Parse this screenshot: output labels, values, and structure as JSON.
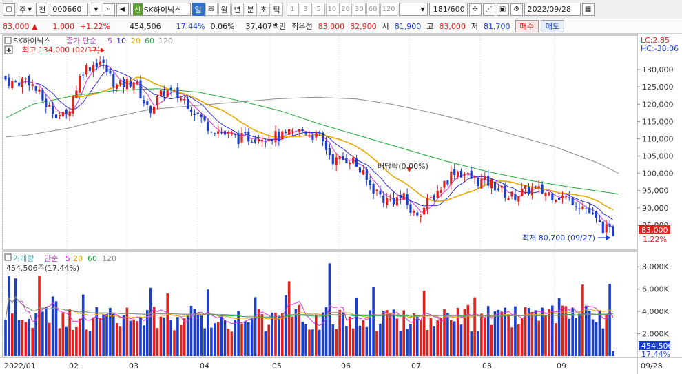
{
  "toolbar": {
    "type_label": "주",
    "market_label": "전",
    "code": "000660",
    "stock_badge": "신",
    "stock_name": "SK하이닉스",
    "periods": [
      {
        "label": "일",
        "active": true
      },
      {
        "label": "주",
        "active": false
      },
      {
        "label": "월",
        "active": false
      },
      {
        "label": "년",
        "active": false
      },
      {
        "label": "분",
        "active": false
      },
      {
        "label": "초",
        "active": false
      },
      {
        "label": "틱",
        "active": false
      }
    ],
    "minutes": [
      "1",
      "3",
      "5",
      "10",
      "20",
      "30",
      "60",
      "120"
    ],
    "count": "181",
    "count_total": "/600",
    "date": "2022/09/28"
  },
  "quote": {
    "price": "83,000",
    "change": "1,000",
    "change_pct": "+1.22%",
    "volume": "454,506",
    "volume_ratio": "17.44%",
    "turnover": "0.06%",
    "amount": "37,407백만",
    "best_ask_label": "최우선",
    "best_ask": "83,000",
    "best_bid": "82,900",
    "open_label": "시",
    "open": "81,900",
    "high_label": "고",
    "high": "83,000",
    "low_label": "저",
    "low": "81,700",
    "buy_label": "매수",
    "sell_label": "매도"
  },
  "chart": {
    "price_legend": {
      "name": "SK하이닉스",
      "series_label": "종가 단순",
      "mas": [
        "5",
        "10",
        "20",
        "60",
        "120"
      ]
    },
    "volume_legend": {
      "name": "거래량",
      "series_label": "단순",
      "mas": [
        "5",
        "20",
        "60",
        "120"
      ],
      "current": "454,506주(17.44%)"
    },
    "price_axis_labels": [
      "130,000",
      "125,000",
      "120,000",
      "115,000",
      "110,000",
      "105,000",
      "100,000",
      "95,000",
      "90,000",
      "85,000"
    ],
    "volume_axis_labels": [
      "8,000K",
      "6,000K",
      "4,000K",
      "2,000K"
    ],
    "lc_label": "LC:2.85",
    "hc_label": "HC:-38.06",
    "price_tag": "83,000",
    "price_tag_pct": "1.22%",
    "volume_tag": "454,506",
    "volume_tag_pct": "17.44%",
    "annotations": {
      "high": "최고 134,000 (02/17)",
      "low": "최저 80,700 (09/27)",
      "dividend": "배당락(0.00%)"
    },
    "month_labels": [
      "2022/01",
      "02",
      "03",
      "04",
      "05",
      "06",
      "07",
      "08",
      "09",
      "09/28"
    ],
    "colors": {
      "up": "#e0211d",
      "down": "#1a3fcf",
      "ma5": "#d62fd6",
      "ma10": "#2a2ad8",
      "ma20": "#e8a600",
      "ma60": "#22a83a",
      "ma120": "#8c8c8c"
    }
  },
  "chart_data": {
    "type": "candlestick",
    "y_range": [
      79000,
      136000
    ],
    "volume_range_k": [
      0,
      9000
    ],
    "high": 134000,
    "low": 80700,
    "last_close": 83000,
    "last_volume": 454506,
    "ma120": [
      [
        0,
        110500
      ],
      [
        30,
        111000
      ],
      [
        90,
        113000
      ],
      [
        150,
        116000
      ],
      [
        210,
        118500
      ],
      [
        270,
        119500
      ],
      [
        330,
        120500
      ],
      [
        390,
        121500
      ],
      [
        450,
        122000
      ],
      [
        510,
        121500
      ],
      [
        560,
        120000
      ],
      [
        620,
        117500
      ],
      [
        680,
        114500
      ],
      [
        740,
        111000
      ],
      [
        800,
        107500
      ],
      [
        860,
        103000
      ],
      [
        890,
        100000
      ]
    ],
    "ma60": [
      [
        0,
        116000
      ],
      [
        40,
        120000
      ],
      [
        100,
        122500
      ],
      [
        160,
        124000
      ],
      [
        220,
        124500
      ],
      [
        280,
        123500
      ],
      [
        340,
        121000
      ],
      [
        400,
        118000
      ],
      [
        460,
        114000
      ],
      [
        520,
        110500
      ],
      [
        580,
        107000
      ],
      [
        640,
        103500
      ],
      [
        700,
        100500
      ],
      [
        760,
        98000
      ],
      [
        820,
        96000
      ],
      [
        890,
        94000
      ]
    ]
  }
}
